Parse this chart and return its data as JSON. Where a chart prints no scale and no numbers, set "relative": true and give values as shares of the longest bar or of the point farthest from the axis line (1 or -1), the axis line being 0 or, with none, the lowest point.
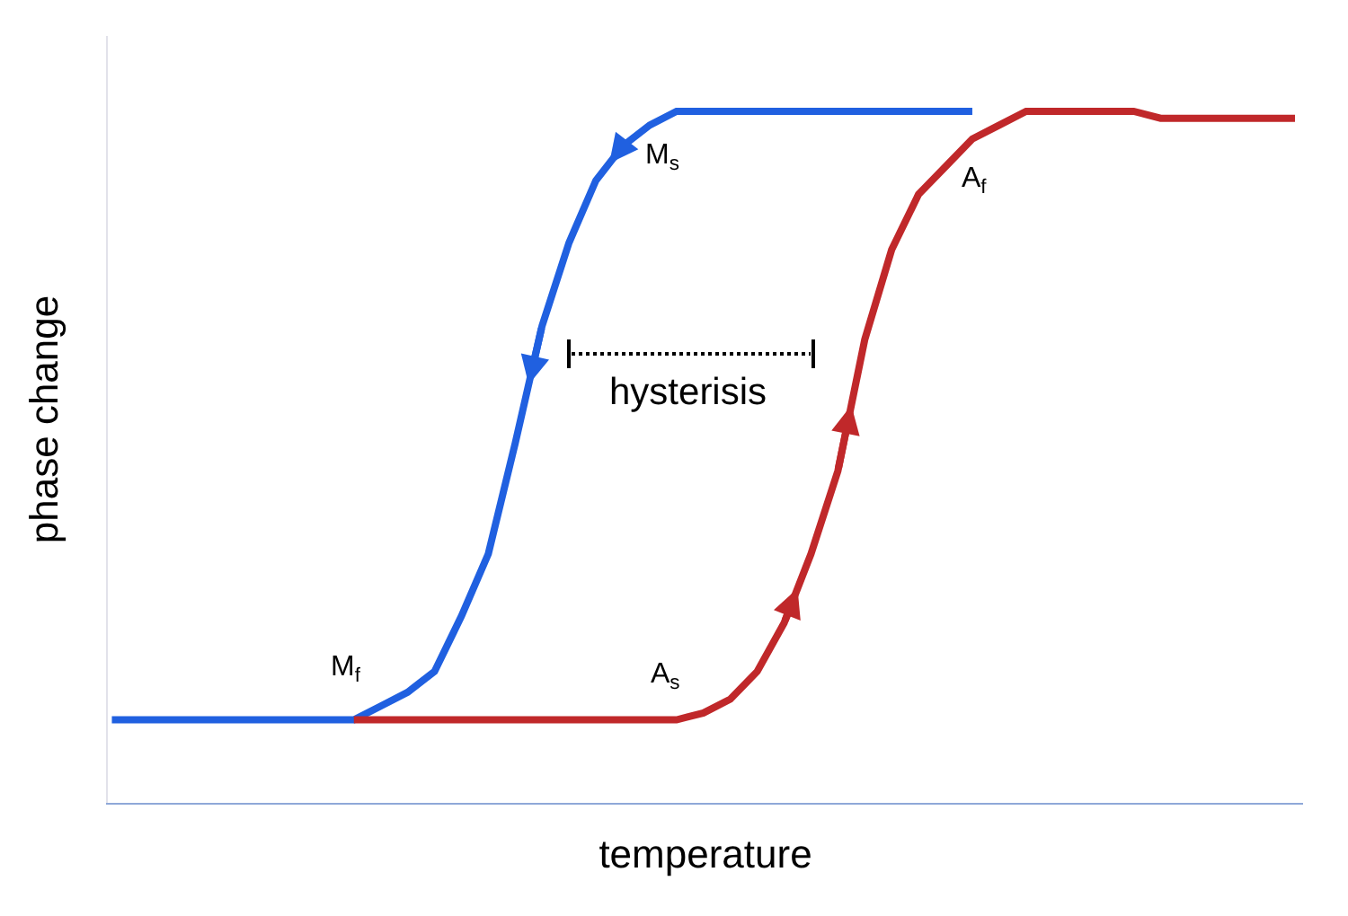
{
  "chart_data": {
    "type": "line",
    "relative": true,
    "xlabel": "temperature",
    "ylabel": "phase change",
    "categories": [
      null,
      null,
      null,
      null,
      null,
      null,
      null,
      null,
      null,
      null,
      null,
      null,
      null,
      null,
      null,
      null,
      null,
      null,
      null,
      null,
      null,
      null,
      null,
      null,
      null,
      null,
      null,
      null,
      null,
      null,
      null,
      null,
      null,
      null,
      null,
      null,
      null,
      null,
      null,
      null,
      null,
      null,
      null,
      null,
      null
    ],
    "series": [
      {
        "color": "#2060e0",
        "values": [
          0.12,
          0.12,
          0.12,
          0.12,
          0.12,
          0.12,
          0.12,
          0.12,
          0.12,
          0.12,
          0.14,
          0.16,
          0.19,
          0.27,
          0.36,
          0.52,
          0.69,
          0.81,
          0.9,
          0.95,
          0.98,
          1,
          1,
          1,
          1,
          1,
          1,
          1,
          1,
          1,
          1,
          1,
          1,
          null,
          null,
          null,
          null,
          null,
          null,
          null,
          null,
          null,
          null,
          null,
          null
        ]
      },
      {
        "color": "#c0282a",
        "values": [
          null,
          null,
          null,
          null,
          null,
          null,
          null,
          null,
          null,
          0.12,
          0.12,
          0.12,
          0.12,
          0.12,
          0.12,
          0.12,
          0.12,
          0.12,
          0.12,
          0.12,
          0.12,
          0.12,
          0.13,
          0.15,
          0.19,
          0.26,
          0.36,
          0.48,
          0.67,
          0.8,
          0.88,
          0.92,
          0.96,
          0.98,
          1,
          1,
          1,
          1,
          1,
          0.99,
          0.99,
          0.99,
          0.99,
          0.99,
          0.99
        ]
      }
    ],
    "annotations": [
      "M$_{s}$",
      "A$_{f}$",
      "hysterisis",
      "M$_{f}$",
      "A$_{s}$"
    ]
  }
}
